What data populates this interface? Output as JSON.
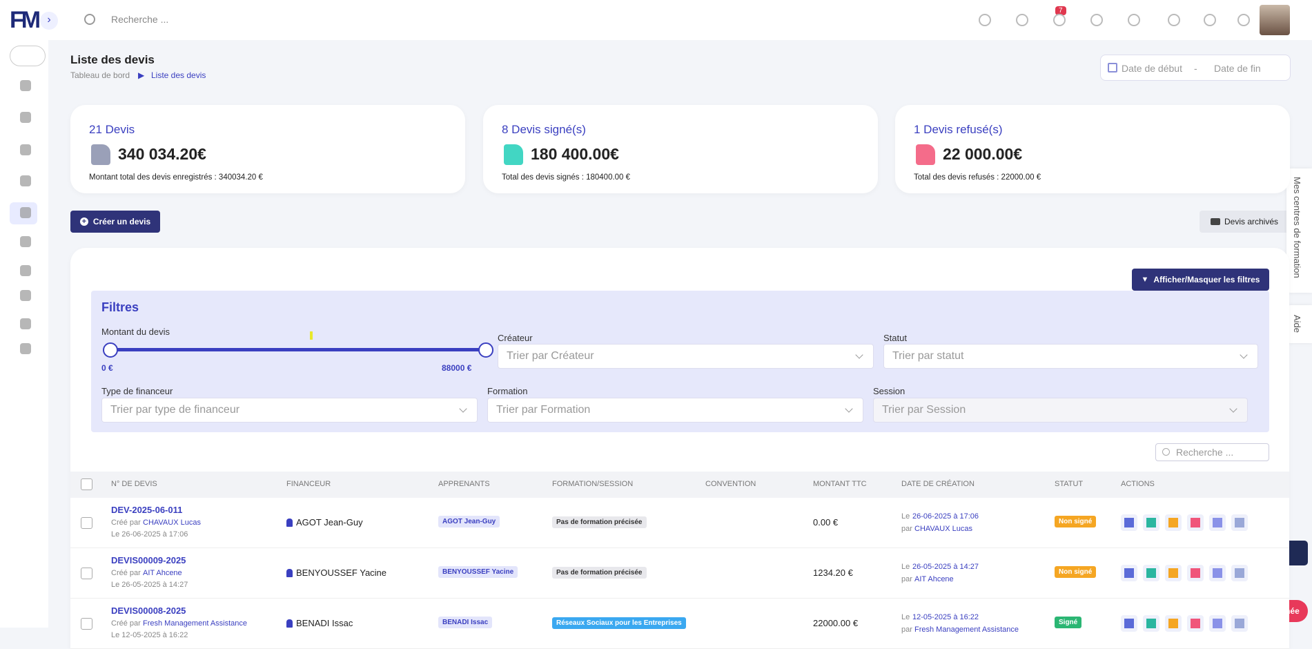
{
  "header": {
    "logo": "FM",
    "search_placeholder": "Recherche ...",
    "notification_count": "7"
  },
  "page": {
    "title": "Liste des devis",
    "breadcrumb": [
      "Tableau de bord",
      "Liste des devis"
    ],
    "date_start": "Date de début",
    "date_sep": "-",
    "date_end": "Date de fin"
  },
  "stats": [
    {
      "title": "21 Devis",
      "amount": "340 034.20€",
      "caption": "Montant total des devis enregistrés : 340034.20 €"
    },
    {
      "title": "8 Devis signé(s)",
      "amount": "180 400.00€",
      "caption": "Total des devis signés : 180400.00 €"
    },
    {
      "title": "1 Devis refusé(s)",
      "amount": "22 000.00€",
      "caption": "Total des devis refusés : 22000.00 €"
    }
  ],
  "actions": {
    "create": "Créer un devis",
    "archived": "Devis archivés",
    "toggle_filters": "Afficher/Masquer les filtres"
  },
  "side_tabs": [
    "Mes centres de formation",
    "Aide"
  ],
  "filters": {
    "title": "Filtres",
    "amount_label": "Montant du devis",
    "amount_min": "0 €",
    "amount_max": "88000 €",
    "creator_label": "Créateur",
    "creator_placeholder": "Trier par Créateur",
    "status_label": "Statut",
    "status_placeholder": "Trier par statut",
    "funder_label": "Type de financeur",
    "funder_placeholder": "Trier par type de financeur",
    "training_label": "Formation",
    "training_placeholder": "Trier par Formation",
    "session_label": "Session",
    "session_placeholder": "Trier par Session"
  },
  "table": {
    "search_placeholder": "Recherche ...",
    "columns": [
      "N° DE DEVIS",
      "FINANCEUR",
      "APPRENANTS",
      "FORMATION/SESSION",
      "CONVENTION",
      "MONTANT TTC",
      "DATE DE CRÉATION",
      "STATUT",
      "ACTIONS"
    ],
    "rows": [
      {
        "number": "DEV-2025-06-011",
        "created_label": "Créé par",
        "creator": "CHAVAUX Lucas",
        "created_date": "Le 26-06-2025 à 17:06",
        "funder": "AGOT Jean-Guy",
        "learner": "AGOT Jean-Guy",
        "training": "Pas de formation précisée",
        "amount": "0.00 €",
        "date_prefix": "Le",
        "date": "26-06-2025 à 17:06",
        "by_prefix": "par",
        "by": "CHAVAUX Lucas",
        "status": "Non signé"
      },
      {
        "number": "DEVIS00009-2025",
        "created_label": "Créé par",
        "creator": "AIT Ahcene",
        "created_date": "Le 26-05-2025 à 14:27",
        "funder": "BENYOUSSEF Yacine",
        "learner": "BENYOUSSEF Yacine",
        "training": "Pas de formation précisée",
        "amount": "1234.20 €",
        "date_prefix": "Le",
        "date": "26-05-2025 à 14:27",
        "by_prefix": "par",
        "by": "AIT Ahcene",
        "status": "Non signé"
      },
      {
        "number": "DEVIS00008-2025",
        "created_label": "Créé par",
        "creator": "Fresh Management Assistance",
        "created_date": "Le 12-05-2025 à 16:22",
        "funder": "BENADI Issac",
        "learner": "BENADI Issac",
        "training": "Réseaux Sociaux pour les Entreprises",
        "amount": "22000.00 €",
        "date_prefix": "Le",
        "date": "12-05-2025 à 16:22",
        "by_prefix": "par",
        "by": "Fresh Management Assistance",
        "status": "Signé"
      }
    ]
  },
  "trial": "Offre d'essai terminée"
}
